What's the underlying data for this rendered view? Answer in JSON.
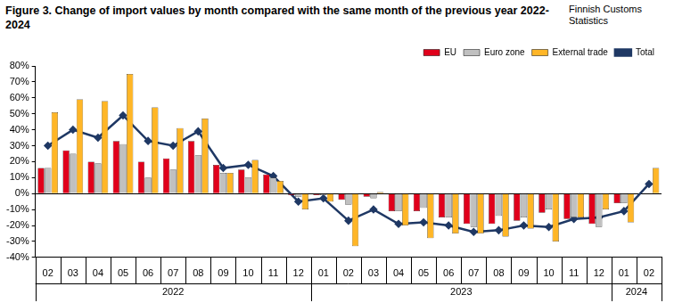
{
  "chart_data": {
    "type": "bar",
    "title": "Figure 3. Change of import values by month compared with the same month of the previous year 2022-2024",
    "source": "Finnish Customs Statistics",
    "categories": [
      "02",
      "03",
      "04",
      "05",
      "06",
      "07",
      "08",
      "09",
      "10",
      "11",
      "12",
      "01",
      "02",
      "03",
      "04",
      "05",
      "06",
      "07",
      "08",
      "09",
      "10",
      "11",
      "12",
      "01",
      "02"
    ],
    "category_groups": [
      {
        "label": "2022",
        "count": 11
      },
      {
        "label": "2023",
        "count": 12
      },
      {
        "label": "2024",
        "count": 2
      }
    ],
    "series": [
      {
        "name": "EU",
        "color": "#e0001b",
        "values": [
          16,
          27,
          20,
          33,
          20,
          22,
          33,
          18,
          15,
          12,
          -1,
          -1,
          -4,
          -2,
          -11,
          -11,
          -15,
          -19,
          -19,
          -17,
          -12,
          -16,
          -19,
          -6,
          0
        ]
      },
      {
        "name": "Euro zone",
        "color": "#c0c0c0",
        "values": [
          16,
          25,
          19,
          31,
          10,
          15,
          24,
          13,
          10,
          10,
          -2,
          -1,
          -7,
          -3,
          -11,
          -9,
          -15,
          -21,
          -14,
          -15,
          -10,
          -15,
          -21,
          -6,
          0
        ]
      },
      {
        "name": "External trade",
        "color": "#ffb627",
        "values": [
          51,
          59,
          58,
          75,
          54,
          41,
          47,
          13,
          21,
          8,
          -10,
          -5,
          -33,
          1,
          -20,
          -28,
          -25,
          -25,
          -27,
          -22,
          -30,
          -15,
          -10,
          -18,
          16
        ]
      },
      {
        "name": "Total",
        "color": "#1f3864",
        "type": "line",
        "marker": "diamond",
        "line_style": "solid",
        "values": [
          30,
          40,
          35,
          49,
          33,
          30,
          39,
          16,
          18,
          11,
          -5,
          -3,
          -17,
          -10,
          -19,
          -18,
          -20,
          -24,
          -23,
          -20,
          -21,
          -16,
          -15,
          -11,
          6
        ]
      }
    ],
    "ylim": [
      -40,
      80
    ],
    "yticks": [
      {
        "value": -40,
        "label": "-40%"
      },
      {
        "value": -30,
        "label": "-30%"
      },
      {
        "value": -20,
        "label": "-20%"
      },
      {
        "value": -10,
        "label": "-10%"
      },
      {
        "value": 0,
        "label": "0%"
      },
      {
        "value": 10,
        "label": "10%"
      },
      {
        "value": 20,
        "label": "20%"
      },
      {
        "value": 30,
        "label": "30%"
      },
      {
        "value": 40,
        "label": "40%"
      },
      {
        "value": 50,
        "label": "50%"
      },
      {
        "value": 60,
        "label": "60%"
      },
      {
        "value": 70,
        "label": "70%"
      },
      {
        "value": 80,
        "label": "80%"
      }
    ],
    "grid": false,
    "legend": "top-right"
  }
}
